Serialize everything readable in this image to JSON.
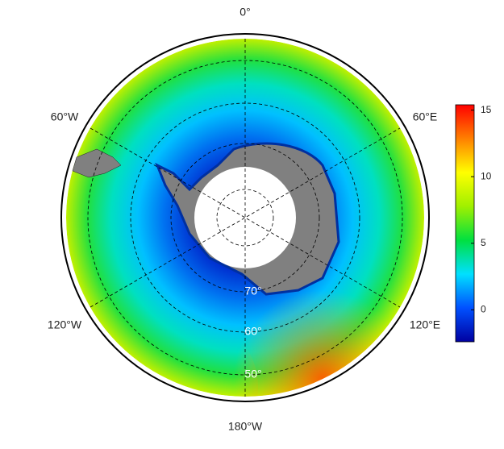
{
  "map": {
    "lon_labels": [
      "0°",
      "60°E",
      "120°E",
      "180°W",
      "120°W",
      "60°W"
    ],
    "lat_labels": [
      "70°",
      "60°",
      "50°"
    ]
  },
  "colorbar": {
    "lim": [
      -2.4,
      15.4
    ],
    "ticks": [
      0,
      5,
      10,
      15
    ],
    "colors": [
      "#0000a0",
      "#0050ff",
      "#00e0ff",
      "#00e040",
      "#a0f000",
      "#ffff00",
      "#ff8000",
      "#ff0000"
    ]
  }
}
